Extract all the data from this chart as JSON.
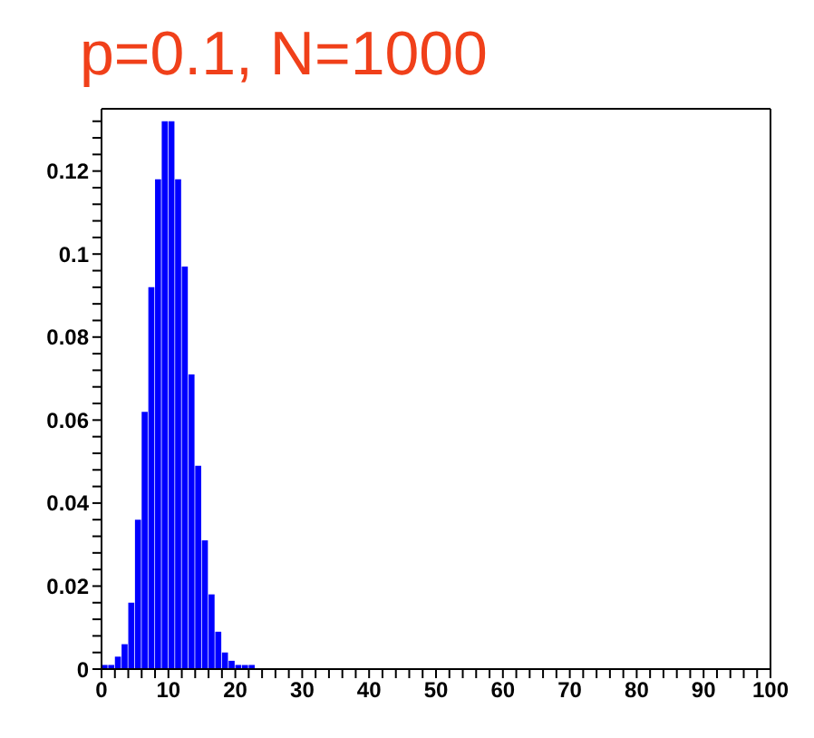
{
  "chart_data": {
    "type": "histogram",
    "title": "p=0.1, N=1000",
    "bins": [
      0,
      1,
      2,
      3,
      4,
      5,
      6,
      7,
      8,
      9,
      10,
      11,
      12,
      13,
      14,
      15,
      16,
      17,
      18,
      19,
      20,
      21,
      22,
      23
    ],
    "values": [
      0.001,
      0.001,
      0.003,
      0.006,
      0.016,
      0.036,
      0.062,
      0.092,
      0.118,
      0.132,
      0.132,
      0.118,
      0.097,
      0.071,
      0.049,
      0.031,
      0.018,
      0.009,
      0.004,
      0.002,
      0.001,
      0.001,
      0.001
    ],
    "color": "#0000ff",
    "xlim": [
      0,
      100
    ],
    "xticks": [
      0,
      {
        "value": 2,
        "label": null
      },
      {
        "value": 4,
        "label": null
      },
      {
        "value": 6,
        "label": null
      },
      {
        "value": 8,
        "label": null
      },
      10,
      {
        "value": 12,
        "label": null
      },
      {
        "value": 14,
        "label": null
      },
      {
        "value": 16,
        "label": null
      },
      {
        "value": 18,
        "label": null
      },
      20,
      {
        "value": 22,
        "label": null
      },
      {
        "value": 24,
        "label": null
      },
      {
        "value": 26,
        "label": null
      },
      {
        "value": 28,
        "label": null
      },
      30,
      {
        "value": 32,
        "label": null
      },
      {
        "value": 34,
        "label": null
      },
      {
        "value": 36,
        "label": null
      },
      {
        "value": 38,
        "label": null
      },
      40,
      {
        "value": 42,
        "label": null
      },
      {
        "value": 44,
        "label": null
      },
      {
        "value": 46,
        "label": null
      },
      {
        "value": 48,
        "label": null
      },
      50,
      {
        "value": 52,
        "label": null
      },
      {
        "value": 54,
        "label": null
      },
      {
        "value": 56,
        "label": null
      },
      {
        "value": 58,
        "label": null
      },
      60,
      {
        "value": 62,
        "label": null
      },
      {
        "value": 64,
        "label": null
      },
      {
        "value": 66,
        "label": null
      },
      {
        "value": 68,
        "label": null
      },
      70,
      {
        "value": 72,
        "label": null
      },
      {
        "value": 74,
        "label": null
      },
      {
        "value": 76,
        "label": null
      },
      {
        "value": 78,
        "label": null
      },
      80,
      {
        "value": 82,
        "label": null
      },
      {
        "value": 84,
        "label": null
      },
      {
        "value": 86,
        "label": null
      },
      {
        "value": 88,
        "label": null
      },
      90,
      {
        "value": 92,
        "label": null
      },
      {
        "value": 94,
        "label": null
      },
      {
        "value": 96,
        "label": null
      },
      {
        "value": 98,
        "label": null
      },
      100
    ],
    "ylim": [
      0,
      0.135
    ],
    "yticks": [
      0,
      {
        "value": 0.004,
        "label": null
      },
      {
        "value": 0.008,
        "label": null
      },
      {
        "value": 0.012,
        "label": null
      },
      {
        "value": 0.016,
        "label": null
      },
      0.02,
      {
        "value": 0.024,
        "label": null
      },
      {
        "value": 0.028,
        "label": null
      },
      {
        "value": 0.032,
        "label": null
      },
      {
        "value": 0.036,
        "label": null
      },
      0.04,
      {
        "value": 0.044,
        "label": null
      },
      {
        "value": 0.048,
        "label": null
      },
      {
        "value": 0.052,
        "label": null
      },
      {
        "value": 0.056,
        "label": null
      },
      0.06,
      {
        "value": 0.064,
        "label": null
      },
      {
        "value": 0.068,
        "label": null
      },
      {
        "value": 0.072,
        "label": null
      },
      {
        "value": 0.076,
        "label": null
      },
      0.08,
      {
        "value": 0.084,
        "label": null
      },
      {
        "value": 0.088,
        "label": null
      },
      {
        "value": 0.092,
        "label": null
      },
      {
        "value": 0.096,
        "label": null
      },
      0.1,
      {
        "value": 0.104,
        "label": null
      },
      {
        "value": 0.108,
        "label": null
      },
      {
        "value": 0.112,
        "label": null
      },
      {
        "value": 0.116,
        "label": null
      },
      0.12,
      {
        "value": 0.124,
        "label": null
      },
      {
        "value": 0.128,
        "label": null
      },
      {
        "value": 0.132,
        "label": null
      }
    ],
    "grid": false
  }
}
